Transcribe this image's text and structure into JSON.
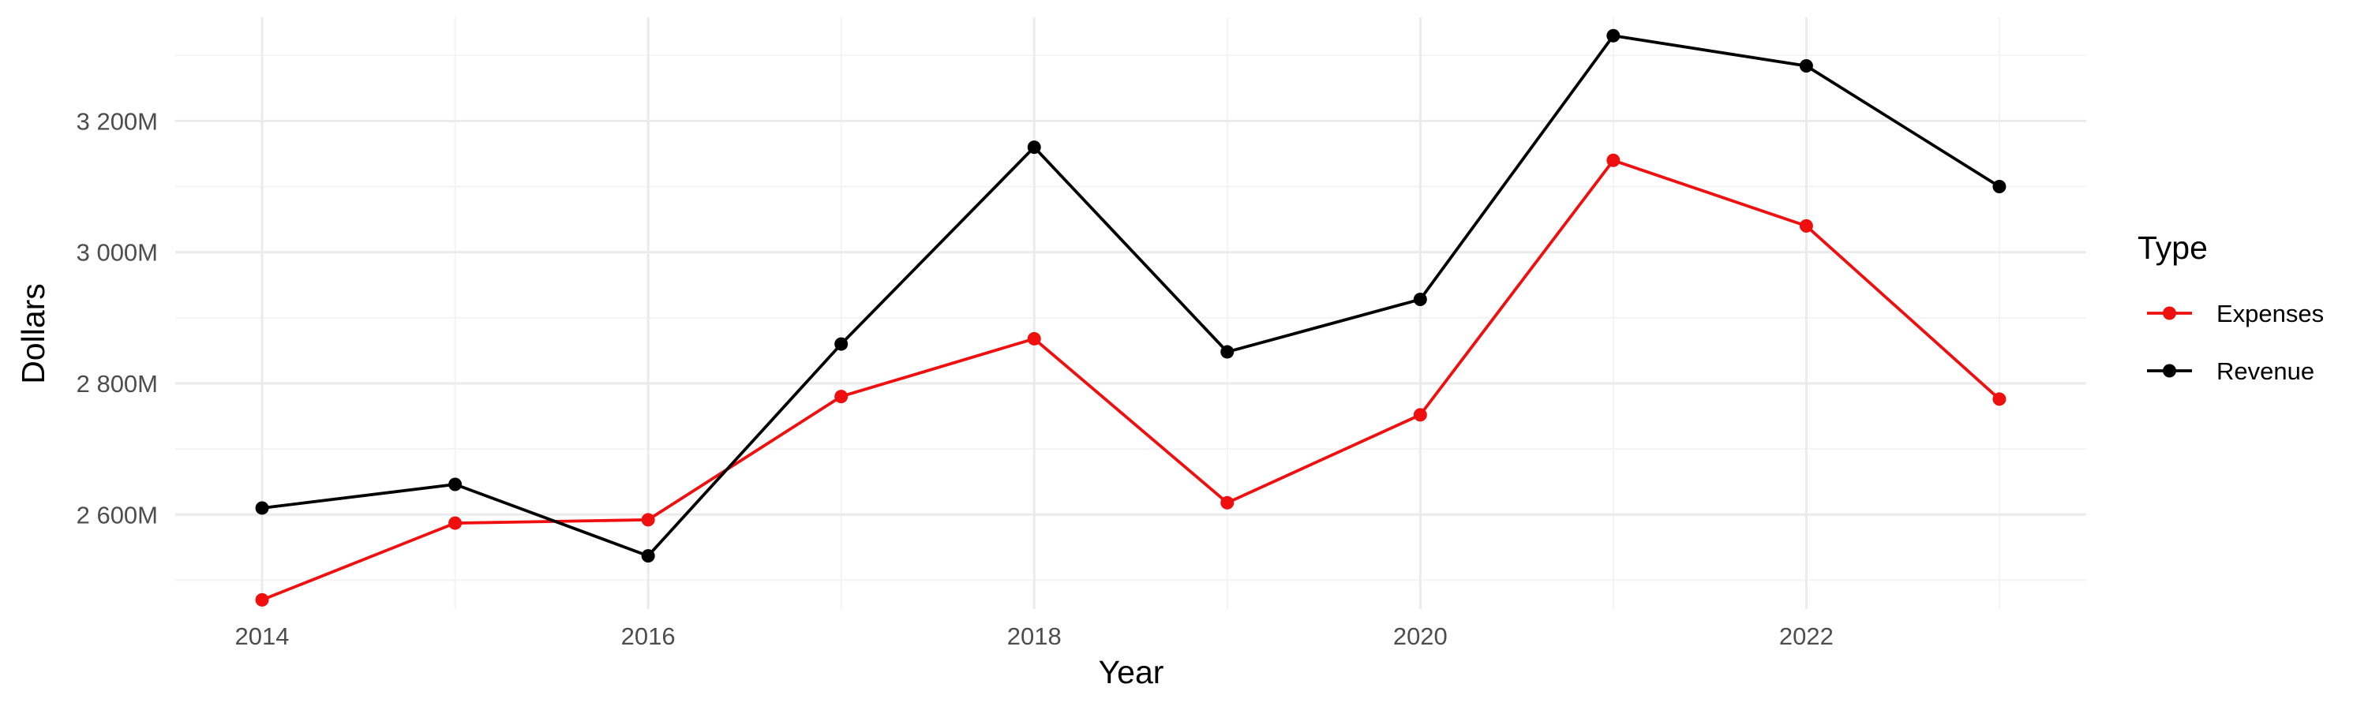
{
  "chart_data": {
    "type": "line",
    "title": "",
    "xlabel": "Year",
    "ylabel": "Dollars",
    "x": [
      2014,
      2015,
      2016,
      2017,
      2018,
      2019,
      2020,
      2021,
      2022,
      2023
    ],
    "x_ticks": [
      2014,
      2016,
      2018,
      2020,
      2022
    ],
    "x_tick_labels": [
      "2014",
      "2016",
      "2018",
      "2020",
      "2022"
    ],
    "xlim": [
      2013.55,
      2023.45
    ],
    "y_ticks": [
      2600,
      2800,
      3000,
      3200
    ],
    "y_tick_labels": [
      "2 600M",
      "2 800M",
      "3 000M",
      "3 200M"
    ],
    "y_minor_ticks": [
      2500,
      2700,
      2900,
      3100,
      3300
    ],
    "ylim": [
      2456,
      3358
    ],
    "units": "millions of dollars",
    "grid": true,
    "legend": {
      "title": "Type",
      "placement": "right"
    },
    "series": [
      {
        "name": "Expenses",
        "color": "#f00f0f",
        "values": [
          2470,
          2587,
          2592,
          2780,
          2868,
          2618,
          2752,
          3140,
          3040,
          2776
        ]
      },
      {
        "name": "Revenue",
        "color": "#000000",
        "values": [
          2610,
          2646,
          2537,
          2860,
          3160,
          2848,
          2928,
          3330,
          3284,
          3100
        ]
      }
    ]
  }
}
